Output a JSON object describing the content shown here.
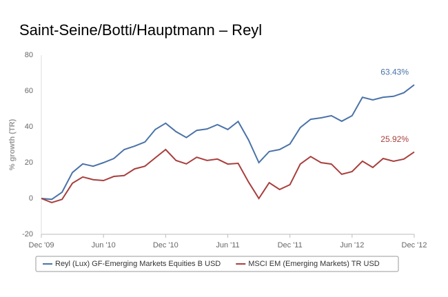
{
  "chart_data": {
    "type": "line",
    "title": "Saint-Seine/Botti/Hauptmann – Reyl",
    "y_label": "% growth (TR)",
    "categories": [
      "Dec '09",
      null,
      null,
      null,
      null,
      null,
      "Jun '10",
      null,
      null,
      null,
      null,
      null,
      "Dec '10",
      null,
      null,
      null,
      null,
      null,
      "Jun '11",
      null,
      null,
      null,
      null,
      null,
      "Dec '11",
      null,
      null,
      null,
      null,
      null,
      "Jun '12",
      null,
      null,
      null,
      null,
      null,
      "Dec '12"
    ],
    "series": [
      {
        "name": "Reyl (Lux) GF-Emerging Markets Equities B USD",
        "color": "#4a72a8",
        "values": [
          0,
          -0.5,
          3.5,
          14.5,
          19.3,
          18,
          20,
          22.3,
          27.3,
          29.2,
          31.5,
          38.5,
          42,
          37.3,
          34,
          38,
          38.8,
          41.2,
          38.5,
          43,
          32.7,
          20,
          26.2,
          27.3,
          30.4,
          39.6,
          44.2,
          45,
          46.2,
          43.1,
          46.2,
          56.5,
          55,
          56.5,
          57,
          59,
          63.43
        ],
        "value_labels": [
          null,
          null,
          null,
          null,
          null,
          null,
          null,
          null,
          null,
          null,
          null,
          null,
          null,
          null,
          null,
          null,
          null,
          null,
          null,
          null,
          null,
          null,
          null,
          null,
          null,
          null,
          null,
          null,
          null,
          null,
          null,
          null,
          null,
          null,
          null,
          null,
          "63.43%"
        ]
      },
      {
        "name": "MSCI EM (Emerging Markets) TR USD",
        "color": "#a83e3c",
        "values": [
          0,
          -2.3,
          -0.5,
          8.5,
          12,
          10.5,
          10,
          12.3,
          12.8,
          16.5,
          18,
          22.7,
          27.3,
          21.2,
          19.3,
          23,
          21.2,
          22,
          19.2,
          19.6,
          9.2,
          0,
          8.8,
          5,
          7.7,
          19.2,
          23.4,
          20,
          19.2,
          13.5,
          15,
          20.8,
          17.3,
          22.3,
          20.8,
          22,
          25.92
        ],
        "value_labels": [
          null,
          null,
          null,
          null,
          null,
          null,
          null,
          null,
          null,
          null,
          null,
          null,
          null,
          null,
          null,
          null,
          null,
          null,
          null,
          null,
          null,
          null,
          null,
          null,
          null,
          null,
          null,
          null,
          null,
          null,
          null,
          null,
          null,
          null,
          null,
          null,
          "25.92%"
        ]
      }
    ],
    "ylim": [
      -20,
      80
    ],
    "yticks": [
      -20,
      0,
      20,
      40,
      60,
      80
    ],
    "grid": false,
    "legend": "bottom"
  }
}
